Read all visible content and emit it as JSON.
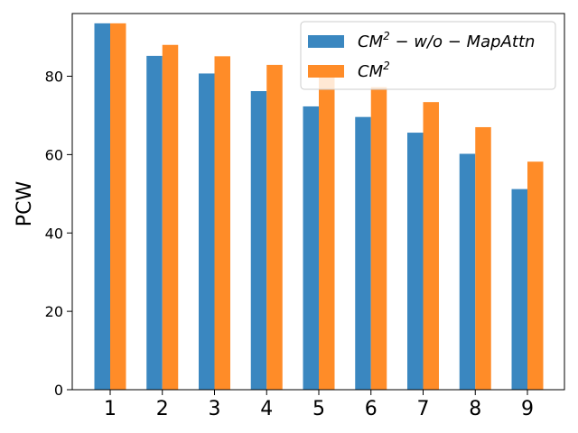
{
  "chart_data": {
    "type": "bar",
    "title": "",
    "xlabel": "",
    "ylabel": "PCW",
    "categories": [
      "1",
      "2",
      "3",
      "4",
      "5",
      "6",
      "7",
      "8",
      "9"
    ],
    "ylim": [
      0,
      96
    ],
    "yticks": [
      0,
      20,
      40,
      60,
      80
    ],
    "grid": false,
    "legend_position": "top-right",
    "series": [
      {
        "name": "CM^2 − w/o − MapAttn",
        "color": "#3a87c0",
        "values": [
          93.5,
          85.2,
          80.7,
          76.2,
          72.3,
          69.6,
          65.6,
          60.2,
          51.2
        ]
      },
      {
        "name": "CM^2",
        "color": "#ff8c28",
        "values": [
          93.5,
          88.0,
          85.1,
          82.9,
          80.3,
          77.2,
          73.4,
          67.0,
          58.2
        ]
      }
    ]
  }
}
